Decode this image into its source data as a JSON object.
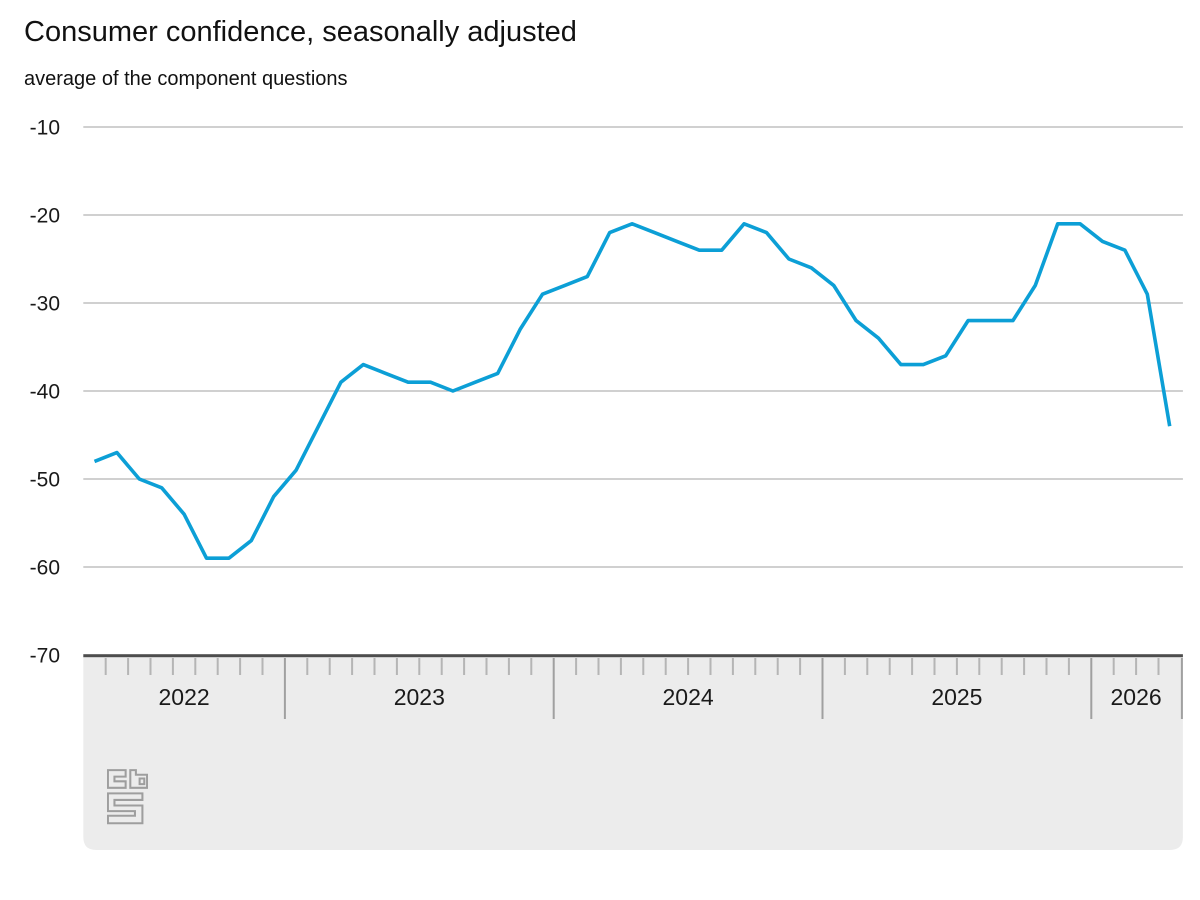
{
  "title": "Consumer confidence, seasonally adjusted",
  "subtitle": "average of the component questions",
  "branding": {
    "logo": "cbs-logo"
  },
  "colors": {
    "line": "#0c9fd6",
    "grid": "#b3b3b3",
    "axis_top_line": "#4d4d4d",
    "band_fill": "#ececec",
    "month_tick": "#b5b5b5",
    "year_separator": "#a0a0a0",
    "text": "#1a1a1a",
    "logo_gray": "#9e9e9e"
  },
  "chart_data": {
    "type": "line",
    "title": "Consumer confidence, seasonally adjusted",
    "subtitle": "average of the component questions",
    "x": [
      "2022-04",
      "2022-05",
      "2022-06",
      "2022-07",
      "2022-08",
      "2022-09",
      "2022-10",
      "2022-11",
      "2022-12",
      "2023-01",
      "2023-02",
      "2023-03",
      "2023-04",
      "2023-05",
      "2023-06",
      "2023-07",
      "2023-08",
      "2023-09",
      "2023-10",
      "2023-11",
      "2023-12",
      "2024-01",
      "2024-02",
      "2024-03",
      "2024-04",
      "2024-05",
      "2024-06",
      "2024-07",
      "2024-08",
      "2024-09",
      "2024-10",
      "2024-11",
      "2024-12",
      "2025-01",
      "2025-02",
      "2025-03",
      "2025-04",
      "2025-05",
      "2025-06",
      "2025-07",
      "2025-08",
      "2025-09",
      "2025-10",
      "2025-11",
      "2025-12",
      "2026-01",
      "2026-02",
      "2026-03",
      "2026-04"
    ],
    "series": [
      {
        "name": "Consumer confidence, seasonally adjusted (average of the component questions)",
        "values": [
          -48,
          -47,
          -50,
          -51,
          -54,
          -59,
          -59,
          -57,
          -52,
          -49,
          -44,
          -39,
          -37,
          -38,
          -39,
          -39,
          -40,
          -39,
          -38,
          -33,
          -29,
          -28,
          -27,
          -22,
          -21,
          -22,
          -23,
          -24,
          -24,
          -21,
          -22,
          -25,
          -26,
          -28,
          -32,
          -34,
          -37,
          -37,
          -36,
          -32,
          -32,
          -32,
          -28,
          -21,
          -21,
          -23,
          -24,
          -29,
          -44
        ]
      }
    ],
    "ylim": [
      -70,
      -10
    ],
    "yticks": [
      -10,
      -20,
      -30,
      -40,
      -50,
      -60,
      -70
    ],
    "xtick_year_labels": [
      "2022",
      "2023",
      "2024",
      "2025",
      "2026"
    ],
    "grid": "horizontal",
    "legend": "none"
  }
}
